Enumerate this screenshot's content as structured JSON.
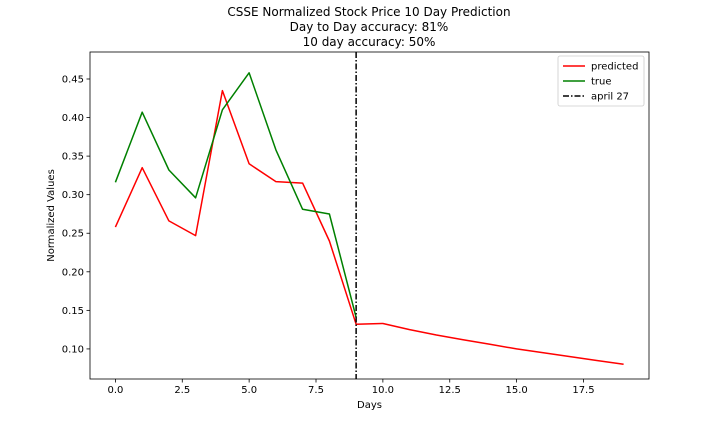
{
  "chart_data": {
    "type": "line",
    "title_lines": [
      "CSSE Normalized Stock Price 10 Day Prediction",
      "Day to Day accuracy: 81%",
      "10 day accuracy: 50%"
    ],
    "xlabel": "Days",
    "ylabel": "Normalized Values",
    "xlim": [
      -0.95,
      19.95
    ],
    "ylim": [
      0.061,
      0.485
    ],
    "xticks": [
      0.0,
      2.5,
      5.0,
      7.5,
      10.0,
      12.5,
      15.0,
      17.5
    ],
    "xtick_labels": [
      "0.0",
      "2.5",
      "5.0",
      "7.5",
      "10.0",
      "12.5",
      "15.0",
      "17.5"
    ],
    "yticks": [
      0.1,
      0.15,
      0.2,
      0.25,
      0.3,
      0.35,
      0.4,
      0.45
    ],
    "ytick_labels": [
      "0.10",
      "0.15",
      "0.20",
      "0.25",
      "0.30",
      "0.35",
      "0.40",
      "0.45"
    ],
    "series": [
      {
        "name": "predicted",
        "color": "#ff0000",
        "x": [
          0,
          1,
          2,
          3,
          4,
          5,
          6,
          7,
          8,
          9,
          10,
          11,
          12,
          13,
          14,
          15,
          16,
          17,
          18,
          19
        ],
        "y": [
          0.258,
          0.335,
          0.266,
          0.247,
          0.435,
          0.34,
          0.317,
          0.315,
          0.24,
          0.132,
          0.133,
          0.125,
          0.118,
          0.112,
          0.106,
          0.1,
          0.095,
          0.09,
          0.085,
          0.08
        ]
      },
      {
        "name": "true",
        "color": "#008000",
        "x": [
          0,
          1,
          2,
          3,
          4,
          5,
          6,
          7,
          8,
          9
        ],
        "y": [
          0.316,
          0.407,
          0.332,
          0.296,
          0.41,
          0.458,
          0.358,
          0.281,
          0.275,
          0.141
        ]
      }
    ],
    "vline": {
      "name": "april 27",
      "x": 9,
      "color": "#000000",
      "style": "dash-dot"
    },
    "legend_position": "upper right",
    "grid": false
  }
}
